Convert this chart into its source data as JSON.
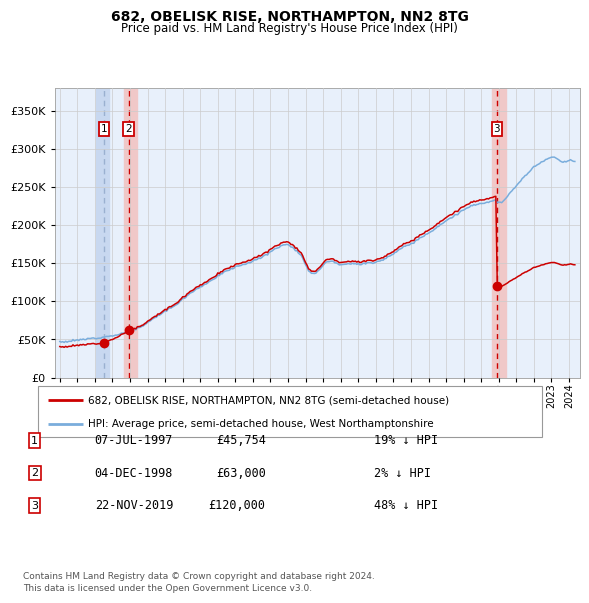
{
  "title1": "682, OBELISK RISE, NORTHAMPTON, NN2 8TG",
  "title2": "Price paid vs. HM Land Registry's House Price Index (HPI)",
  "legend_label_red": "682, OBELISK RISE, NORTHAMPTON, NN2 8TG (semi-detached house)",
  "legend_label_blue": "HPI: Average price, semi-detached house, West Northamptonshire",
  "footer": "Contains HM Land Registry data © Crown copyright and database right 2024.\nThis data is licensed under the Open Government Licence v3.0.",
  "transactions": [
    {
      "num": 1,
      "date": "07-JUL-1997",
      "price": 45754,
      "pct": "19% ↓ HPI",
      "year": 1997.52
    },
    {
      "num": 2,
      "date": "04-DEC-1998",
      "price": 63000,
      "pct": "2% ↓ HPI",
      "year": 1998.92
    },
    {
      "num": 3,
      "date": "22-NOV-2019",
      "price": 120000,
      "pct": "48% ↓ HPI",
      "year": 2019.89
    }
  ],
  "bg_color": "#e8f0fb",
  "red_color": "#cc0000",
  "blue_color": "#7aaddc",
  "ylim": [
    0,
    380000
  ],
  "yticks": [
    0,
    50000,
    100000,
    150000,
    200000,
    250000,
    300000,
    350000
  ],
  "xlim_start": 1994.7,
  "xlim_end": 2024.6,
  "sale_years": [
    1997.52,
    1998.92,
    2019.89
  ],
  "sale_prices": [
    45754,
    63000,
    120000
  ],
  "span1_color": "#c8d8f0",
  "span2_color": "#f0c8c8",
  "vline1_color": "#9ab0d0",
  "vline2_color": "#cc0000"
}
